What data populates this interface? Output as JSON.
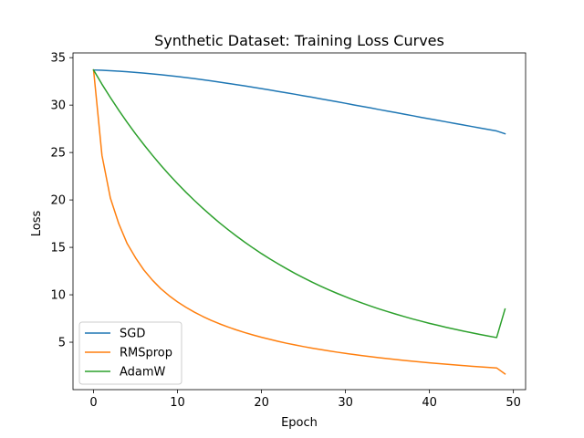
{
  "chart_data": {
    "type": "line",
    "title": "Synthetic Dataset: Training Loss Curves",
    "xlabel": "Epoch",
    "ylabel": "Loss",
    "xlim": [
      -2.45,
      51.45
    ],
    "ylim": [
      0.0,
      35.5
    ],
    "xticks": [
      0,
      10,
      20,
      30,
      40,
      50
    ],
    "yticks": [
      5,
      10,
      15,
      20,
      25,
      30,
      35
    ],
    "grid": false,
    "legend_position": "lower-left",
    "x": [
      0,
      1,
      2,
      3,
      4,
      5,
      6,
      7,
      8,
      9,
      10,
      11,
      12,
      13,
      14,
      15,
      16,
      17,
      18,
      19,
      20,
      21,
      22,
      23,
      24,
      25,
      26,
      27,
      28,
      29,
      30,
      31,
      32,
      33,
      34,
      35,
      36,
      37,
      38,
      39,
      40,
      41,
      42,
      43,
      44,
      45,
      46,
      47,
      48,
      49
    ],
    "series": [
      {
        "name": "SGD",
        "color": "#1f77b4",
        "values": [
          33.7,
          33.67,
          33.63,
          33.57,
          33.51,
          33.44,
          33.37,
          33.29,
          33.2,
          33.11,
          33.01,
          32.9,
          32.79,
          32.67,
          32.55,
          32.42,
          32.29,
          32.16,
          32.02,
          31.88,
          31.74,
          31.59,
          31.44,
          31.29,
          31.14,
          30.98,
          30.83,
          30.67,
          30.51,
          30.35,
          30.19,
          30.02,
          29.86,
          29.7,
          29.53,
          29.37,
          29.21,
          29.04,
          28.88,
          28.71,
          28.55,
          28.39,
          28.23,
          28.07,
          27.91,
          27.75,
          27.59,
          27.43,
          27.27,
          26.98
        ]
      },
      {
        "name": "RMSprop",
        "color": "#ff7f0e",
        "values": [
          33.7,
          24.7,
          20.2,
          17.5,
          15.4,
          13.9,
          12.6,
          11.55,
          10.65,
          9.9,
          9.25,
          8.68,
          8.17,
          7.72,
          7.31,
          6.94,
          6.61,
          6.3,
          6.02,
          5.76,
          5.52,
          5.3,
          5.09,
          4.89,
          4.71,
          4.54,
          4.38,
          4.23,
          4.09,
          3.95,
          3.82,
          3.7,
          3.58,
          3.47,
          3.37,
          3.27,
          3.17,
          3.08,
          2.99,
          2.91,
          2.83,
          2.75,
          2.68,
          2.61,
          2.54,
          2.47,
          2.41,
          2.35,
          2.29,
          1.65
        ]
      },
      {
        "name": "AdamW",
        "color": "#2ca02c",
        "values": [
          33.7,
          32.2,
          30.8,
          29.46,
          28.18,
          26.97,
          25.82,
          24.72,
          23.67,
          22.67,
          21.72,
          20.81,
          19.95,
          19.13,
          18.34,
          17.59,
          16.88,
          16.2,
          15.55,
          14.93,
          14.34,
          13.78,
          13.25,
          12.74,
          12.25,
          11.79,
          11.35,
          10.93,
          10.53,
          10.15,
          9.79,
          9.45,
          9.12,
          8.81,
          8.51,
          8.23,
          7.96,
          7.7,
          7.45,
          7.22,
          6.99,
          6.78,
          6.57,
          6.37,
          6.18,
          6.0,
          5.82,
          5.65,
          5.49,
          8.5
        ]
      }
    ]
  }
}
